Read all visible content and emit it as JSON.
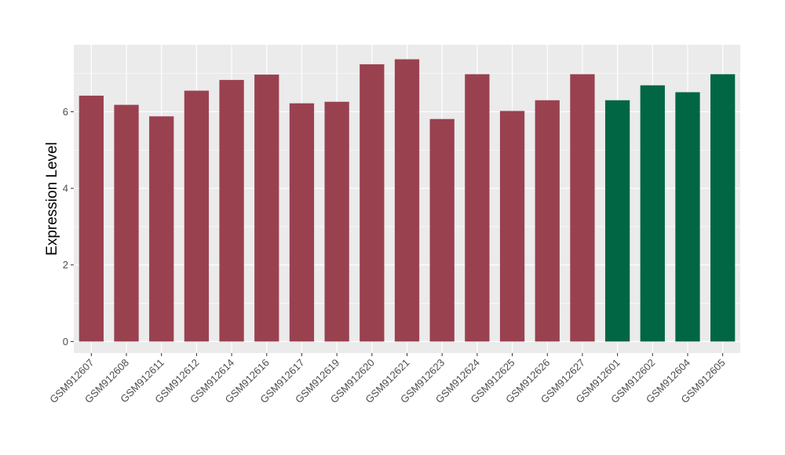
{
  "chart_data": {
    "type": "bar",
    "title": "",
    "xlabel": "",
    "ylabel": "Expression Level",
    "ylim": [
      -0.3,
      7.75
    ],
    "yticks": [
      0,
      2,
      4,
      6
    ],
    "yticks_labels": [
      "0",
      "2",
      "4",
      "6"
    ],
    "grid": true,
    "legend": "none",
    "categories": [
      "GSM912607",
      "GSM912608",
      "GSM912611",
      "GSM912612",
      "GSM912614",
      "GSM912616",
      "GSM912617",
      "GSM912619",
      "GSM912620",
      "GSM912621",
      "GSM912623",
      "GSM912624",
      "GSM912625",
      "GSM912626",
      "GSM912627",
      "GSM912601",
      "GSM912602",
      "GSM912604",
      "GSM912605"
    ],
    "values": [
      6.42,
      6.18,
      5.88,
      6.55,
      6.83,
      6.97,
      6.22,
      6.26,
      7.24,
      7.37,
      5.81,
      6.98,
      6.02,
      6.3,
      6.98,
      6.3,
      6.69,
      6.51,
      6.98
    ],
    "groups": [
      "a",
      "a",
      "a",
      "a",
      "a",
      "a",
      "a",
      "a",
      "a",
      "a",
      "a",
      "a",
      "a",
      "a",
      "a",
      "b",
      "b",
      "b",
      "b"
    ],
    "group_colors": {
      "a": "#9a4150",
      "b": "#006644"
    },
    "panel_background": "#ebebeb",
    "grid_color": "#ffffff"
  }
}
